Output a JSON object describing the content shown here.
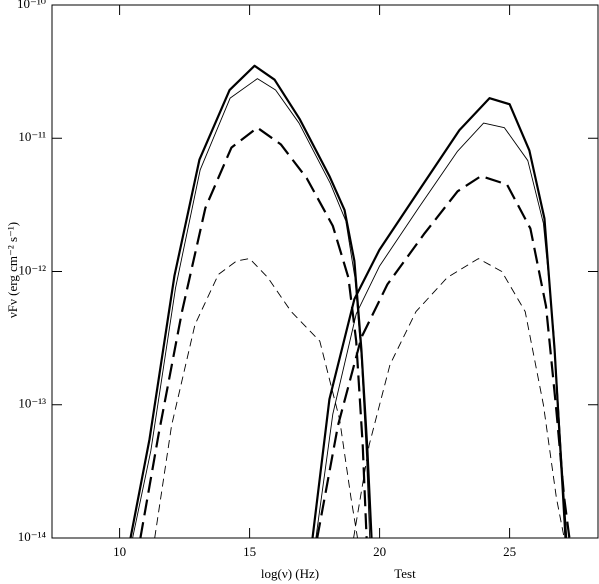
{
  "chart_data": {
    "type": "line",
    "xlabel": "log(ν) (Hz)",
    "annotation": "Test",
    "ylabel": "νFν (erg cm⁻² s⁻¹)",
    "xlim": [
      7.4,
      28.4
    ],
    "xticks": [
      10,
      15,
      20,
      25
    ],
    "ylim": [
      1e-14,
      1e-10
    ],
    "ylog": true,
    "yticks": [
      {
        "value": 1e-14,
        "label": "10⁻¹⁴"
      },
      {
        "value": 1e-13,
        "label": "10⁻¹³"
      },
      {
        "value": 1e-12,
        "label": "10⁻¹²"
      },
      {
        "value": 1e-11,
        "label": "10⁻¹¹"
      },
      {
        "value": 1e-10,
        "label": "10⁻¹⁰"
      }
    ],
    "grid": false,
    "series": [
      {
        "color": "#000000",
        "style": "solid",
        "weight": "thick",
        "x": [
          10.42,
          11.15,
          12.11,
          13.07,
          14.23,
          15.19,
          15.96,
          16.92,
          18.07,
          18.65,
          19.03,
          19.3,
          19.53,
          19.69,
          null,
          17.42,
          18.07,
          19.03,
          19.99,
          21.53,
          23.07,
          24.23,
          25.0,
          25.76,
          26.34,
          26.73,
          27.0,
          27.15
        ],
        "values": [
          1e-14,
          5.5e-14,
          9.3e-13,
          6.9e-12,
          2.3e-11,
          3.5e-11,
          2.75e-11,
          1.4e-11,
          5.2e-12,
          2.9e-12,
          1.2e-12,
          2.6e-13,
          4.6e-14,
          1e-14,
          null,
          1e-14,
          1.1e-13,
          6.2e-13,
          1.45e-12,
          4.1e-12,
          1.15e-11,
          2e-11,
          1.8e-11,
          8.1e-12,
          2.5e-12,
          2.6e-13,
          3.2e-14,
          1e-14
        ]
      },
      {
        "color": "#000000",
        "style": "solid",
        "weight": "thin",
        "x": [
          10.5,
          11.2,
          12.15,
          13.1,
          14.25,
          15.3,
          16.0,
          16.9,
          18.1,
          18.7,
          19.05,
          19.3,
          19.5,
          19.62,
          null,
          17.55,
          18.2,
          19.1,
          20.0,
          21.5,
          23.0,
          24.0,
          24.8,
          25.7,
          26.3,
          26.7,
          27.0,
          27.2
        ],
        "values": [
          1e-14,
          4.5e-14,
          7.5e-13,
          5.8e-12,
          2e-11,
          2.8e-11,
          2.3e-11,
          1.3e-11,
          4.6e-12,
          2.4e-12,
          9e-13,
          2.2e-13,
          4e-14,
          1e-14,
          null,
          1e-14,
          8.5e-14,
          4.8e-13,
          1.1e-12,
          3e-12,
          8e-12,
          1.3e-11,
          1.2e-11,
          6.8e-12,
          2.3e-12,
          3.5e-13,
          4e-14,
          1e-14
        ]
      },
      {
        "color": "#000000",
        "style": "dashed",
        "weight": "thick",
        "x": [
          10.8,
          11.5,
          12.4,
          13.3,
          14.3,
          15.3,
          16.2,
          17.2,
          18.2,
          18.8,
          19.1,
          19.35,
          19.5,
          null,
          17.6,
          18.4,
          19.3,
          20.3,
          21.7,
          23.0,
          23.9,
          24.9,
          25.8,
          26.4,
          26.8,
          27.1,
          27.3
        ],
        "values": [
          1e-14,
          6e-14,
          5e-13,
          3e-12,
          8.5e-12,
          1.2e-11,
          9e-12,
          5e-12,
          2.2e-12,
          9e-13,
          3e-13,
          5e-14,
          1e-14,
          null,
          1e-14,
          7e-14,
          3.2e-13,
          8e-13,
          1.9e-12,
          4e-12,
          5.2e-12,
          4.5e-12,
          2.1e-12,
          5.5e-13,
          9e-14,
          2e-14,
          1e-14
        ]
      },
      {
        "color": "#000000",
        "style": "dashed",
        "weight": "thin",
        "x": [
          11.35,
          12.0,
          12.9,
          13.8,
          14.5,
          15.0,
          15.7,
          16.6,
          17.7,
          18.46,
          18.9,
          19.15,
          null,
          19.0,
          19.6,
          20.4,
          21.4,
          22.6,
          23.8,
          24.7,
          25.6,
          26.3,
          26.8,
          27.1
        ],
        "values": [
          1e-14,
          7e-14,
          4e-13,
          9.5e-13,
          1.2e-12,
          1.25e-12,
          9e-13,
          5e-13,
          3e-13,
          7.8e-14,
          2e-14,
          1e-14,
          null,
          1e-14,
          5e-14,
          2e-13,
          5e-13,
          9e-13,
          1.25e-12,
          1e-12,
          5e-13,
          1e-13,
          2e-14,
          1e-14
        ]
      }
    ]
  }
}
